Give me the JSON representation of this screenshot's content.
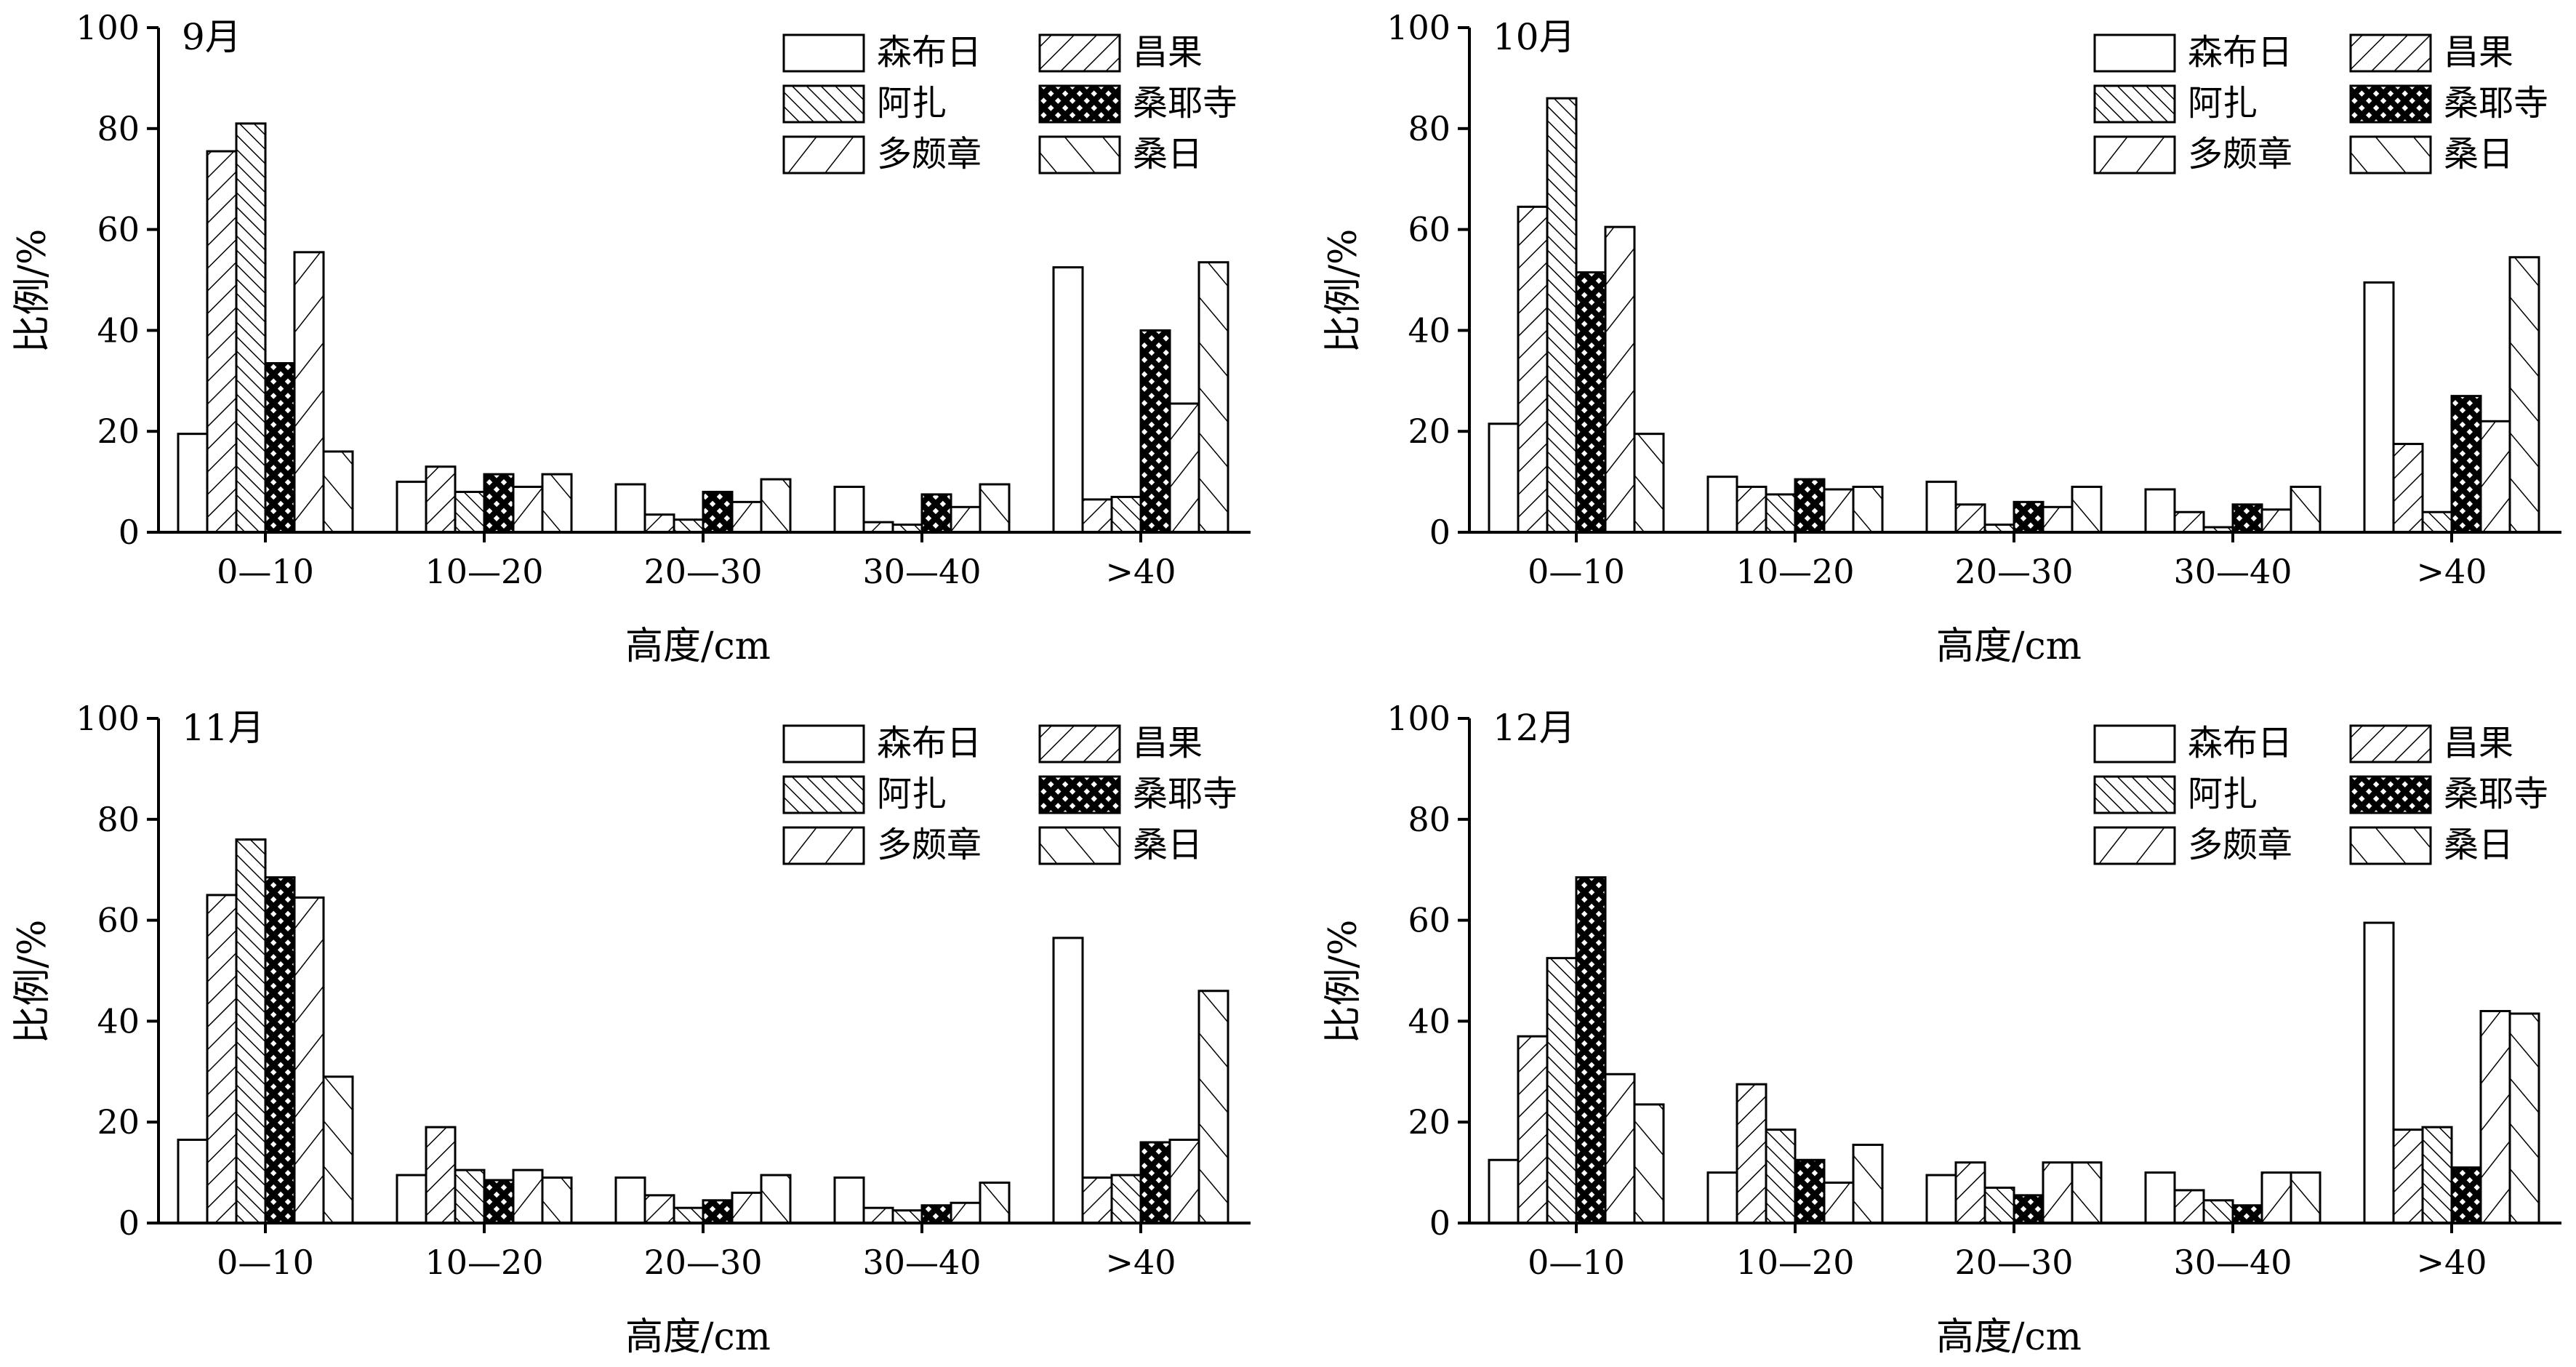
{
  "figure": {
    "colors": {
      "bar_fill": "#ffffff",
      "stroke": "#000000",
      "background": "#ffffff"
    },
    "legend_placement": "top-right",
    "legend_patterns": [
      "blank",
      "hatch-forward-sparse",
      "hatch-back-dense",
      "crosshatch",
      "hatch-forward-wide",
      "hatch-back-wide"
    ]
  },
  "chart_data": [
    {
      "type": "bar",
      "title": "9月",
      "xlabel": "高度/cm",
      "ylabel": "比例/%",
      "ylim": [
        0,
        100
      ],
      "yticks": [
        "0",
        "20",
        "40",
        "60",
        "80",
        "100"
      ],
      "grid": false,
      "categories": [
        "0—10",
        "10—20",
        "20—30",
        "30—40",
        ">40"
      ],
      "series": [
        {
          "name": "森布日",
          "values": [
            19.5,
            10,
            9.5,
            9,
            52.5
          ]
        },
        {
          "name": "昌果",
          "values": [
            75.5,
            13,
            3.5,
            2,
            6.5
          ]
        },
        {
          "name": "阿扎",
          "values": [
            81,
            8,
            2.5,
            1.5,
            7
          ]
        },
        {
          "name": "桑耶寺",
          "values": [
            33.5,
            11.5,
            8,
            7.5,
            40
          ]
        },
        {
          "name": "多颇章",
          "values": [
            55.5,
            9,
            6,
            5,
            25.5
          ]
        },
        {
          "name": "桑日",
          "values": [
            16,
            11.5,
            10.5,
            9.5,
            53.5
          ]
        }
      ]
    },
    {
      "type": "bar",
      "title": "10月",
      "xlabel": "高度/cm",
      "ylabel": "比例/%",
      "ylim": [
        0,
        100
      ],
      "yticks": [
        "0",
        "20",
        "40",
        "60",
        "80",
        "100"
      ],
      "grid": false,
      "categories": [
        "0—10",
        "10—20",
        "20—30",
        "30—40",
        ">40"
      ],
      "series": [
        {
          "name": "森布日",
          "values": [
            21.5,
            11,
            10,
            8.5,
            49.5
          ]
        },
        {
          "name": "昌果",
          "values": [
            64.5,
            9,
            5.5,
            4,
            17.5
          ]
        },
        {
          "name": "阿扎",
          "values": [
            86,
            7.5,
            1.5,
            1,
            4
          ]
        },
        {
          "name": "桑耶寺",
          "values": [
            51.5,
            10.5,
            6,
            5.5,
            27
          ]
        },
        {
          "name": "多颇章",
          "values": [
            60.5,
            8.5,
            5,
            4.5,
            22
          ]
        },
        {
          "name": "桑日",
          "values": [
            19.5,
            9,
            9,
            9,
            54.5
          ]
        }
      ]
    },
    {
      "type": "bar",
      "title": "11月",
      "xlabel": "高度/cm",
      "ylabel": "比例/%",
      "ylim": [
        0,
        100
      ],
      "yticks": [
        "0",
        "20",
        "40",
        "60",
        "80",
        "100"
      ],
      "grid": false,
      "categories": [
        "0—10",
        "10—20",
        "20—30",
        "30—40",
        ">40"
      ],
      "series": [
        {
          "name": "森布日",
          "values": [
            16.5,
            9.5,
            9,
            9,
            56.5
          ]
        },
        {
          "name": "昌果",
          "values": [
            65,
            19,
            5.5,
            3,
            9
          ]
        },
        {
          "name": "阿扎",
          "values": [
            76,
            10.5,
            3,
            2.5,
            9.5
          ]
        },
        {
          "name": "桑耶寺",
          "values": [
            68.5,
            8.5,
            4.5,
            3.5,
            16
          ]
        },
        {
          "name": "多颇章",
          "values": [
            64.5,
            10.5,
            6,
            4,
            16.5
          ]
        },
        {
          "name": "桑日",
          "values": [
            29,
            9,
            9.5,
            8,
            46
          ]
        }
      ]
    },
    {
      "type": "bar",
      "title": "12月",
      "xlabel": "高度/cm",
      "ylabel": "比例/%",
      "ylim": [
        0,
        100
      ],
      "yticks": [
        "0",
        "20",
        "40",
        "60",
        "80",
        "100"
      ],
      "grid": false,
      "categories": [
        "0—10",
        "10—20",
        "20—30",
        "30—40",
        ">40"
      ],
      "series": [
        {
          "name": "森布日",
          "values": [
            12.5,
            10,
            9.5,
            10,
            59.5
          ]
        },
        {
          "name": "昌果",
          "values": [
            37,
            27.5,
            12,
            6.5,
            18.5
          ]
        },
        {
          "name": "阿扎",
          "values": [
            52.5,
            18.5,
            7,
            4.5,
            19
          ]
        },
        {
          "name": "桑耶寺",
          "values": [
            68.5,
            12.5,
            5.5,
            3.5,
            11
          ]
        },
        {
          "name": "多颇章",
          "values": [
            29.5,
            8,
            12,
            10,
            42
          ]
        },
        {
          "name": "桑日",
          "values": [
            23.5,
            15.5,
            12,
            10,
            41.5
          ]
        }
      ]
    }
  ]
}
